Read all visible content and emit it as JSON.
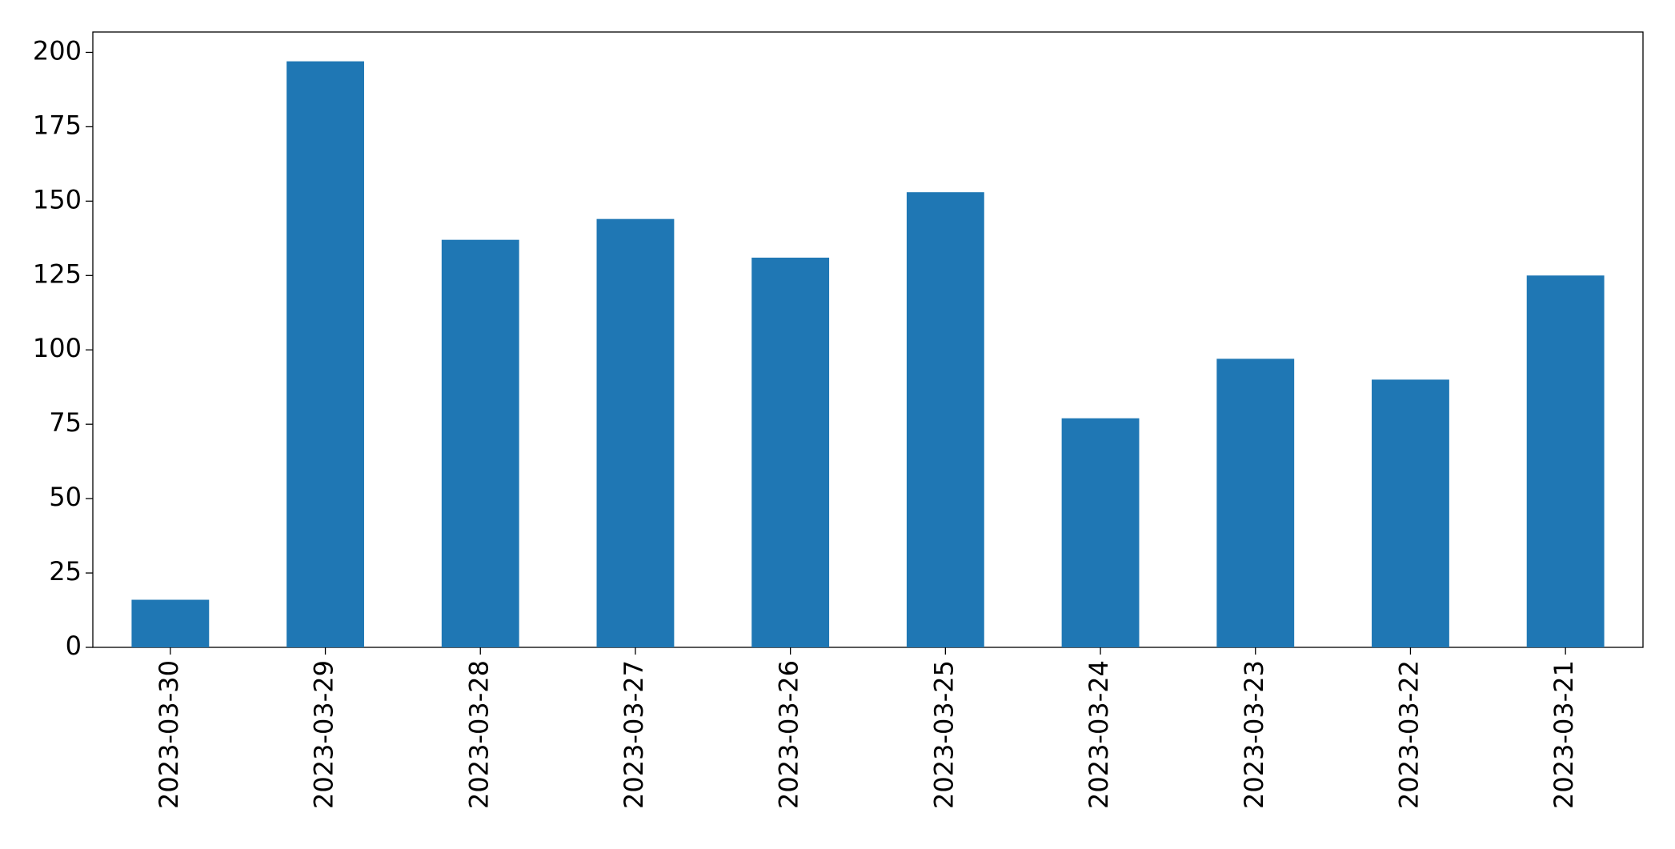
{
  "chart_data": {
    "type": "bar",
    "categories": [
      "2023-03-30",
      "2023-03-29",
      "2023-03-28",
      "2023-03-27",
      "2023-03-26",
      "2023-03-25",
      "2023-03-24",
      "2023-03-23",
      "2023-03-22",
      "2023-03-21"
    ],
    "values": [
      16,
      197,
      137,
      144,
      131,
      153,
      77,
      97,
      90,
      125
    ],
    "color": "#1f77b4",
    "ylim": [
      0,
      206.85
    ],
    "yticks": [
      0,
      25,
      50,
      75,
      100,
      125,
      150,
      175,
      200
    ],
    "grid": false
  }
}
